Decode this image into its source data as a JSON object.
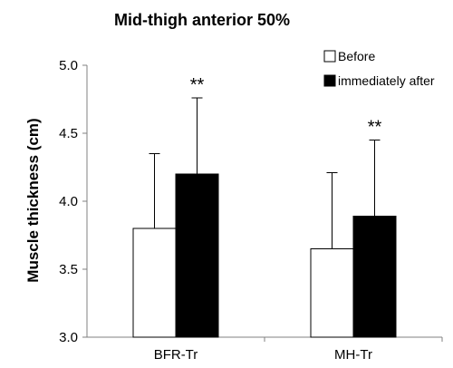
{
  "chart_data": {
    "type": "bar",
    "title": "Mid-thigh anterior 50%",
    "xlabel": "",
    "ylabel": "Muscle thickness (cm)",
    "ylim": [
      3.0,
      5.0
    ],
    "yticks": [
      3.0,
      3.5,
      4.0,
      4.5,
      5.0
    ],
    "ytick_labels": [
      "3.0",
      "3.5",
      "4.0",
      "4.5",
      "5.0"
    ],
    "categories": [
      "BFR-Tr",
      "MH-Tr"
    ],
    "series": [
      {
        "name": "Before",
        "color": "#ffffff",
        "values": [
          3.8,
          3.65
        ],
        "error_upper": [
          4.35,
          4.21
        ]
      },
      {
        "name": "immediately after",
        "color": "#000000",
        "values": [
          4.2,
          3.89
        ],
        "error_upper": [
          4.76,
          4.45
        ]
      }
    ],
    "annotations": [
      {
        "category": "BFR-Tr",
        "series": "immediately after",
        "text": "**"
      },
      {
        "category": "MH-Tr",
        "series": "immediately after",
        "text": "**"
      }
    ],
    "grid": false,
    "legend_position": "top-right"
  }
}
